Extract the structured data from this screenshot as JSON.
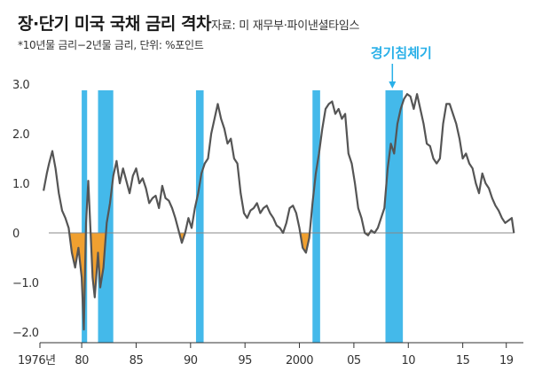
{
  "header": {
    "title": "장·단기 미국 국채 금리 격차",
    "source": "자료: 미 재무부·파이낸셜타임스",
    "note": "*10년물 금리−2년물 금리, 단위: %포인트"
  },
  "colors": {
    "line": "#555555",
    "recession": "#44b9ea",
    "negative_fill": "#f0a030",
    "zero_line": "#888888",
    "axis": "#333333",
    "annotation": "#29b0e8"
  },
  "chart_data": {
    "type": "line",
    "title": "장·단기 미국 국채 금리 격차",
    "x_tick_labels": [
      "1976년",
      "80",
      "85",
      "90",
      "95",
      "2000",
      "05",
      "10",
      "15",
      "19"
    ],
    "x_tick_values": [
      1976,
      1980,
      1985,
      1990,
      1995,
      2000,
      2005,
      2010,
      2015,
      2019
    ],
    "y_tick_labels": [
      "3.0",
      "2.0",
      "1.0",
      "0",
      "−1.0",
      "−2.0"
    ],
    "y_tick_values": [
      3,
      2,
      1,
      0,
      -1,
      -2
    ],
    "xlim": [
      1976,
      2020
    ],
    "ylim": [
      -2.2,
      3.1
    ],
    "grid": false,
    "recession_label": "경기침체기",
    "recessions": [
      [
        1980.0,
        1980.5
      ],
      [
        1981.5,
        1982.9
      ],
      [
        1990.5,
        1991.2
      ],
      [
        2001.2,
        2001.9
      ],
      [
        2007.9,
        2009.5
      ]
    ],
    "series": [
      {
        "x": [
          1976.5,
          1976.8,
          1977.0,
          1977.3,
          1977.6,
          1977.9,
          1978.2,
          1978.5,
          1978.8,
          1979.1,
          1979.4,
          1979.7,
          1980.0,
          1980.2,
          1980.4,
          1980.6,
          1980.8,
          1981.0,
          1981.2,
          1981.5,
          1981.7,
          1982.0,
          1982.3,
          1982.6,
          1982.9,
          1983.2,
          1983.5,
          1983.8,
          1984.1,
          1984.4,
          1984.7,
          1985.0,
          1985.3,
          1985.6,
          1985.9,
          1986.2,
          1986.5,
          1986.8,
          1987.1,
          1987.4,
          1987.7,
          1988.0,
          1988.3,
          1988.6,
          1988.9,
          1989.2,
          1989.5,
          1989.8,
          1990.1,
          1990.4,
          1990.7,
          1991.0,
          1991.3,
          1991.6,
          1991.9,
          1992.2,
          1992.5,
          1992.8,
          1993.1,
          1993.4,
          1993.7,
          1994.0,
          1994.3,
          1994.6,
          1994.9,
          1995.2,
          1995.5,
          1995.8,
          1996.1,
          1996.4,
          1996.7,
          1997.0,
          1997.3,
          1997.6,
          1997.9,
          1998.2,
          1998.5,
          1998.8,
          1999.1,
          1999.4,
          1999.7,
          2000.0,
          2000.3,
          2000.6,
          2000.9,
          2001.2,
          2001.5,
          2001.8,
          2002.1,
          2002.4,
          2002.7,
          2003.0,
          2003.3,
          2003.6,
          2003.9,
          2004.2,
          2004.5,
          2004.8,
          2005.1,
          2005.4,
          2005.7,
          2006.0,
          2006.3,
          2006.6,
          2006.9,
          2007.2,
          2007.5,
          2007.8,
          2008.1,
          2008.4,
          2008.7,
          2009.0,
          2009.3,
          2009.6,
          2009.9,
          2010.2,
          2010.5,
          2010.8,
          2011.1,
          2011.4,
          2011.7,
          2012.0,
          2012.3,
          2012.6,
          2012.9,
          2013.2,
          2013.5,
          2013.8,
          2014.1,
          2014.4,
          2014.7,
          2015.0,
          2015.3,
          2015.6,
          2015.9,
          2016.2,
          2016.5,
          2016.8,
          2017.1,
          2017.4,
          2017.7,
          2018.0,
          2018.3,
          2018.6,
          2018.9,
          2019.2,
          2019.5,
          2019.7
        ],
        "y": [
          0.85,
          1.2,
          1.4,
          1.65,
          1.3,
          0.8,
          0.45,
          0.3,
          0.1,
          -0.4,
          -0.7,
          -0.3,
          -0.9,
          -1.95,
          0.2,
          1.05,
          0.1,
          -0.9,
          -1.3,
          -0.4,
          -1.1,
          -0.7,
          0.2,
          0.6,
          1.15,
          1.45,
          1.0,
          1.3,
          1.05,
          0.8,
          1.15,
          1.3,
          1.0,
          1.1,
          0.9,
          0.6,
          0.7,
          0.75,
          0.5,
          0.95,
          0.7,
          0.65,
          0.5,
          0.3,
          0.05,
          -0.2,
          0.0,
          0.3,
          0.1,
          0.5,
          0.8,
          1.2,
          1.4,
          1.5,
          2.0,
          2.3,
          2.6,
          2.3,
          2.1,
          1.8,
          1.9,
          1.5,
          1.4,
          0.8,
          0.4,
          0.3,
          0.45,
          0.5,
          0.6,
          0.4,
          0.5,
          0.55,
          0.4,
          0.3,
          0.15,
          0.1,
          0.0,
          0.2,
          0.5,
          0.55,
          0.4,
          0.1,
          -0.3,
          -0.4,
          -0.1,
          0.6,
          1.2,
          1.6,
          2.1,
          2.5,
          2.6,
          2.65,
          2.4,
          2.5,
          2.3,
          2.4,
          1.6,
          1.4,
          1.0,
          0.5,
          0.3,
          0.0,
          -0.05,
          0.05,
          0.0,
          0.1,
          0.3,
          0.5,
          1.3,
          1.8,
          1.6,
          2.2,
          2.5,
          2.7,
          2.8,
          2.75,
          2.5,
          2.8,
          2.5,
          2.2,
          1.8,
          1.75,
          1.5,
          1.4,
          1.5,
          2.2,
          2.6,
          2.6,
          2.4,
          2.2,
          1.9,
          1.5,
          1.6,
          1.4,
          1.3,
          1.0,
          0.8,
          1.2,
          1.0,
          0.9,
          0.7,
          0.55,
          0.45,
          0.3,
          0.2,
          0.25,
          0.3,
          0.0
        ]
      }
    ]
  }
}
